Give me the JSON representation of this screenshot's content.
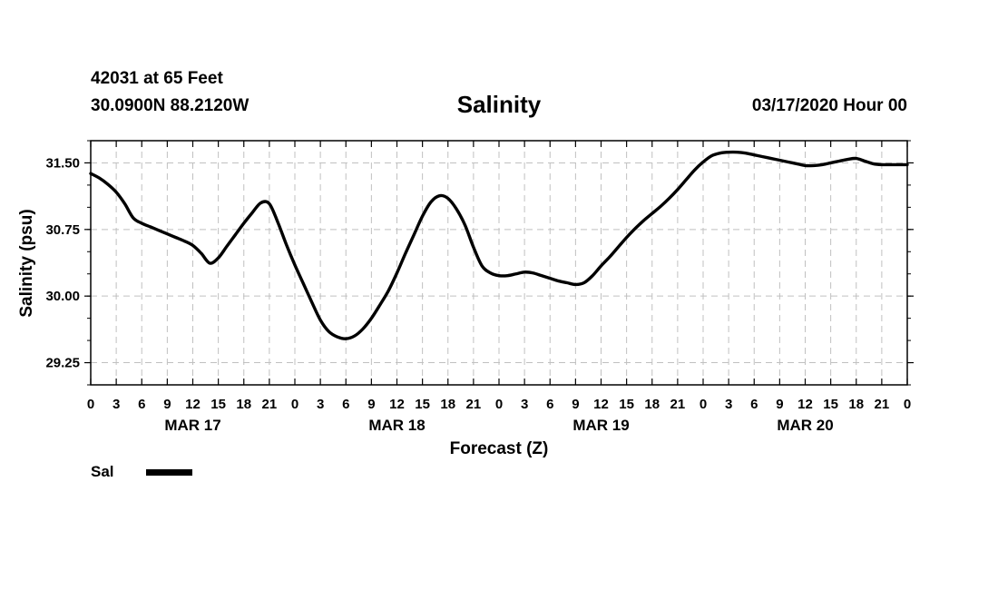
{
  "header": {
    "station": "42031 at 65 Feet",
    "coordinates": "30.0900N 88.2120W",
    "title": "Salinity",
    "run_time": "03/17/2020 Hour 00"
  },
  "chart_data": {
    "type": "line",
    "title": "Salinity",
    "xlabel": "Forecast (Z)",
    "ylabel": "Salinity (psu)",
    "xlim": [
      0,
      96
    ],
    "ylim": [
      29.0,
      31.75
    ],
    "yticks": [
      "31.50",
      "30.75",
      "30.00",
      "29.25"
    ],
    "ytick_values": [
      31.5,
      30.75,
      30.0,
      29.25
    ],
    "xtick_labels": [
      "0",
      "3",
      "6",
      "9",
      "12",
      "15",
      "18",
      "21",
      "0",
      "3",
      "6",
      "9",
      "12",
      "15",
      "18",
      "21",
      "0",
      "3",
      "6",
      "9",
      "12",
      "15",
      "18",
      "21",
      "0",
      "3",
      "6",
      "9",
      "12",
      "15",
      "18",
      "21",
      "0"
    ],
    "xtick_hours": [
      0,
      3,
      6,
      9,
      12,
      15,
      18,
      21,
      24,
      27,
      30,
      33,
      36,
      39,
      42,
      45,
      48,
      51,
      54,
      57,
      60,
      63,
      66,
      69,
      72,
      75,
      78,
      81,
      84,
      87,
      90,
      93,
      96
    ],
    "date_labels": [
      {
        "label": "MAR 17",
        "hour": 12
      },
      {
        "label": "MAR 18",
        "hour": 36
      },
      {
        "label": "MAR 19",
        "hour": 60
      },
      {
        "label": "MAR 20",
        "hour": 84
      }
    ],
    "grid": true,
    "legend_position": "bottom-left",
    "series": [
      {
        "name": "Sal",
        "color": "#000000",
        "x": [
          0,
          1,
          2,
          3,
          4,
          5,
          6,
          7,
          8,
          9,
          10,
          11,
          12,
          13,
          14,
          15,
          16,
          17,
          18,
          19,
          20,
          21,
          22,
          23,
          24,
          25,
          26,
          27,
          28,
          29,
          30,
          31,
          32,
          33,
          34,
          35,
          36,
          37,
          38,
          39,
          40,
          41,
          42,
          43,
          44,
          45,
          46,
          47,
          48,
          49,
          50,
          51,
          52,
          53,
          54,
          55,
          56,
          57,
          58,
          59,
          60,
          61,
          62,
          63,
          64,
          65,
          66,
          67,
          68,
          69,
          70,
          71,
          72,
          73,
          74,
          75,
          76,
          77,
          78,
          79,
          80,
          81,
          82,
          83,
          84,
          85,
          86,
          87,
          88,
          89,
          90,
          91,
          92,
          93,
          94,
          95,
          96
        ],
        "y": [
          31.38,
          31.33,
          31.26,
          31.17,
          31.04,
          30.88,
          30.82,
          30.78,
          30.74,
          30.7,
          30.66,
          30.62,
          30.57,
          30.48,
          30.37,
          30.43,
          30.56,
          30.69,
          30.82,
          30.94,
          31.05,
          31.04,
          30.83,
          30.58,
          30.35,
          30.14,
          29.93,
          29.73,
          29.6,
          29.54,
          29.52,
          29.55,
          29.63,
          29.75,
          29.9,
          30.06,
          30.26,
          30.48,
          30.69,
          30.9,
          31.06,
          31.13,
          31.1,
          30.98,
          30.8,
          30.55,
          30.34,
          30.26,
          30.23,
          30.23,
          30.25,
          30.27,
          30.26,
          30.23,
          30.2,
          30.17,
          30.15,
          30.13,
          30.15,
          30.23,
          30.34,
          30.44,
          30.55,
          30.66,
          30.76,
          30.85,
          30.93,
          31.01,
          31.1,
          31.2,
          31.31,
          31.42,
          31.51,
          31.58,
          31.61,
          31.62,
          31.62,
          31.61,
          31.59,
          31.57,
          31.55,
          31.53,
          31.51,
          31.49,
          31.47,
          31.47,
          31.48,
          31.5,
          31.52,
          31.54,
          31.55,
          31.52,
          31.49,
          31.48,
          31.48,
          31.48,
          31.48
        ]
      }
    ]
  },
  "legend": {
    "series_label": "Sal"
  }
}
